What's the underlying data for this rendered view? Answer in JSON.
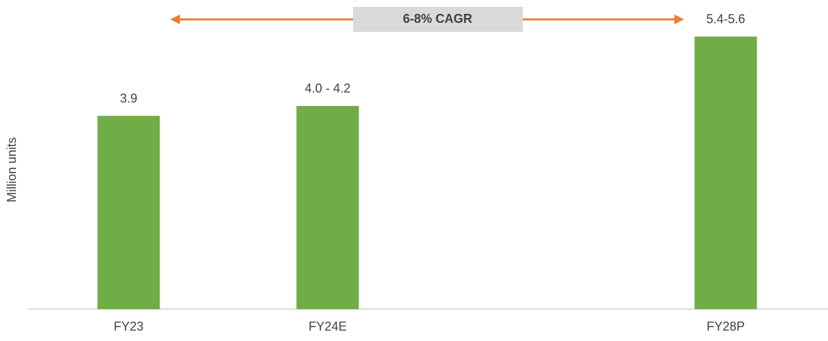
{
  "chart_data": {
    "type": "bar",
    "y_label": "Million units",
    "annotation": "6-8% CAGR",
    "categories": [
      "FY23",
      "FY24E",
      null,
      "FY28P"
    ],
    "values": [
      3.9,
      4.1,
      null,
      5.5
    ],
    "value_labels": [
      "3.9",
      "4.0 - 4.2",
      null,
      "5.4-5.6"
    ],
    "color": "#70ad47",
    "arrow_color": "#ed7d31",
    "ylim": [
      0,
      6
    ]
  }
}
